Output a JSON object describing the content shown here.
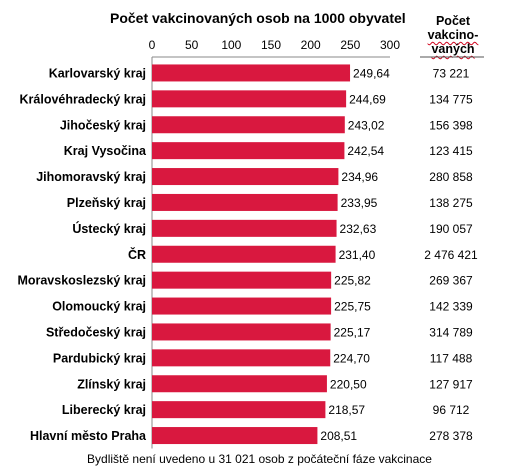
{
  "chart_data": {
    "type": "bar",
    "orientation": "horizontal",
    "title": "Počet vakcinovaných osob na 1000 obyvatel",
    "categories": [
      "Karlovarský kraj",
      "Královéhradecký kraj",
      "Jihočeský kraj",
      "Kraj Vysočina",
      "Jihomoravský kraj",
      "Plzeňský kraj",
      "Ústecký kraj",
      "ČR",
      "Moravskoslezský kraj",
      "Olomoucký kraj",
      "Středočeský kraj",
      "Pardubický kraj",
      "Zlínský kraj",
      "Liberecký kraj",
      "Hlavní město Praha"
    ],
    "values": [
      249.64,
      244.69,
      243.02,
      242.54,
      234.96,
      233.95,
      232.63,
      231.4,
      225.82,
      225.75,
      225.17,
      224.7,
      220.5,
      218.57,
      208.51
    ],
    "value_labels": [
      "249,64",
      "244,69",
      "243,02",
      "242,54",
      "234,96",
      "233,95",
      "232,63",
      "231,40",
      "225,82",
      "225,75",
      "225,17",
      "224,70",
      "220,50",
      "218,57",
      "208,51"
    ],
    "xlim": [
      0,
      300
    ],
    "xticks": [
      0,
      50,
      100,
      150,
      200,
      250,
      300
    ],
    "xtick_labels": [
      "0",
      "50",
      "100",
      "150",
      "200",
      "250",
      "300"
    ],
    "bar_color": "#d9183f",
    "count_column": {
      "header_lines": [
        "Počet",
        "vakcino-",
        "vaných"
      ],
      "values": [
        "73 221",
        "134 775",
        "156 398",
        "123 415",
        "280 858",
        "138 275",
        "190 057",
        "2 476 421",
        "269 367",
        "142 339",
        "314 789",
        "117 488",
        "127 917",
        "96 712",
        "278 378"
      ]
    },
    "footnote": "Bydliště není uvedeno u 31 021 osob z počáteční fáze vakcinace",
    "grid": false
  }
}
